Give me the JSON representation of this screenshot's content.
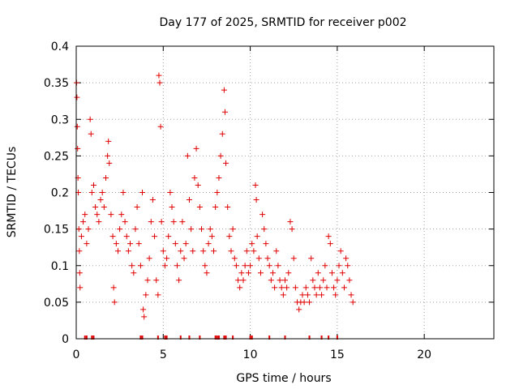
{
  "chart_data": {
    "type": "scatter",
    "title": "Day 177 of 2025, SRMTID for receiver p002",
    "xlabel": "GPS time / hours",
    "ylabel": "SRMTID / TECUs",
    "xlim": [
      0,
      24
    ],
    "ylim": [
      0,
      0.4
    ],
    "xticks": [
      0,
      5,
      10,
      15,
      20
    ],
    "xtick_labels": [
      "0",
      "5",
      "10",
      "15",
      "20"
    ],
    "yticks": [
      0,
      0.05,
      0.1,
      0.15,
      0.2,
      0.25,
      0.3,
      0.35,
      0.4
    ],
    "ytick_labels": [
      "0",
      "0.05",
      "0.1",
      "0.15",
      "0.2",
      "0.25",
      "0.3",
      "0.35",
      "0.4"
    ],
    "grid": true,
    "marker": "+",
    "color": "#e00000",
    "series": [
      {
        "name": "SRMTID",
        "points": [
          [
            0.02,
            0.35
          ],
          [
            0.04,
            0.33
          ],
          [
            0.06,
            0.29
          ],
          [
            0.08,
            0.26
          ],
          [
            0.1,
            0.22
          ],
          [
            0.12,
            0.2
          ],
          [
            0.15,
            0.15
          ],
          [
            0.18,
            0.12
          ],
          [
            0.2,
            0.09
          ],
          [
            0.22,
            0.07
          ],
          [
            0.3,
            0.14
          ],
          [
            0.4,
            0.16
          ],
          [
            0.5,
            0.17
          ],
          [
            0.6,
            0.13
          ],
          [
            0.7,
            0.15
          ],
          [
            0.8,
            0.3
          ],
          [
            0.85,
            0.28
          ],
          [
            0.9,
            0.2
          ],
          [
            1.0,
            0.21
          ],
          [
            1.1,
            0.18
          ],
          [
            1.2,
            0.17
          ],
          [
            1.3,
            0.16
          ],
          [
            1.4,
            0.19
          ],
          [
            1.5,
            0.2
          ],
          [
            1.6,
            0.18
          ],
          [
            1.7,
            0.22
          ],
          [
            1.8,
            0.25
          ],
          [
            1.85,
            0.27
          ],
          [
            1.9,
            0.24
          ],
          [
            2.0,
            0.17
          ],
          [
            2.1,
            0.14
          ],
          [
            2.15,
            0.07
          ],
          [
            2.2,
            0.05
          ],
          [
            2.3,
            0.13
          ],
          [
            2.4,
            0.12
          ],
          [
            2.5,
            0.15
          ],
          [
            2.6,
            0.17
          ],
          [
            2.7,
            0.2
          ],
          [
            2.8,
            0.16
          ],
          [
            2.9,
            0.14
          ],
          [
            3.0,
            0.12
          ],
          [
            3.1,
            0.13
          ],
          [
            3.2,
            0.1
          ],
          [
            3.3,
            0.09
          ],
          [
            3.4,
            0.15
          ],
          [
            3.5,
            0.18
          ],
          [
            3.6,
            0.13
          ],
          [
            3.7,
            0.1
          ],
          [
            3.8,
            0.2
          ],
          [
            3.85,
            0.04
          ],
          [
            3.9,
            0.03
          ],
          [
            4.0,
            0.06
          ],
          [
            4.1,
            0.08
          ],
          [
            4.2,
            0.11
          ],
          [
            4.3,
            0.16
          ],
          [
            4.4,
            0.19
          ],
          [
            4.5,
            0.14
          ],
          [
            4.6,
            0.08
          ],
          [
            4.7,
            0.06
          ],
          [
            4.75,
            0.36
          ],
          [
            4.8,
            0.35
          ],
          [
            4.85,
            0.29
          ],
          [
            4.9,
            0.16
          ],
          [
            5.0,
            0.12
          ],
          [
            5.1,
            0.1
          ],
          [
            5.2,
            0.11
          ],
          [
            5.3,
            0.14
          ],
          [
            5.4,
            0.2
          ],
          [
            5.5,
            0.18
          ],
          [
            5.6,
            0.16
          ],
          [
            5.7,
            0.13
          ],
          [
            5.8,
            0.1
          ],
          [
            5.9,
            0.08
          ],
          [
            6.0,
            0.12
          ],
          [
            6.1,
            0.16
          ],
          [
            6.2,
            0.11
          ],
          [
            6.3,
            0.13
          ],
          [
            6.4,
            0.25
          ],
          [
            6.5,
            0.19
          ],
          [
            6.6,
            0.15
          ],
          [
            6.7,
            0.12
          ],
          [
            6.8,
            0.22
          ],
          [
            6.9,
            0.26
          ],
          [
            7.0,
            0.21
          ],
          [
            7.1,
            0.18
          ],
          [
            7.2,
            0.15
          ],
          [
            7.3,
            0.12
          ],
          [
            7.4,
            0.1
          ],
          [
            7.5,
            0.09
          ],
          [
            7.6,
            0.13
          ],
          [
            7.7,
            0.15
          ],
          [
            7.8,
            0.14
          ],
          [
            7.9,
            0.12
          ],
          [
            8.0,
            0.18
          ],
          [
            8.1,
            0.2
          ],
          [
            8.2,
            0.22
          ],
          [
            8.3,
            0.25
          ],
          [
            8.4,
            0.28
          ],
          [
            8.5,
            0.34
          ],
          [
            8.55,
            0.31
          ],
          [
            8.6,
            0.24
          ],
          [
            8.7,
            0.18
          ],
          [
            8.8,
            0.14
          ],
          [
            8.9,
            0.12
          ],
          [
            9.0,
            0.15
          ],
          [
            9.1,
            0.11
          ],
          [
            9.2,
            0.1
          ],
          [
            9.3,
            0.08
          ],
          [
            9.4,
            0.07
          ],
          [
            9.5,
            0.09
          ],
          [
            9.6,
            0.08
          ],
          [
            9.7,
            0.1
          ],
          [
            9.8,
            0.12
          ],
          [
            9.9,
            0.09
          ],
          [
            10.0,
            0.1
          ],
          [
            10.1,
            0.13
          ],
          [
            10.2,
            0.12
          ],
          [
            10.3,
            0.21
          ],
          [
            10.35,
            0.19
          ],
          [
            10.4,
            0.14
          ],
          [
            10.5,
            0.11
          ],
          [
            10.6,
            0.09
          ],
          [
            10.7,
            0.17
          ],
          [
            10.8,
            0.15
          ],
          [
            10.9,
            0.13
          ],
          [
            11.0,
            0.11
          ],
          [
            11.1,
            0.1
          ],
          [
            11.2,
            0.08
          ],
          [
            11.3,
            0.09
          ],
          [
            11.4,
            0.07
          ],
          [
            11.5,
            0.12
          ],
          [
            11.6,
            0.1
          ],
          [
            11.7,
            0.08
          ],
          [
            11.8,
            0.07
          ],
          [
            11.9,
            0.06
          ],
          [
            12.0,
            0.08
          ],
          [
            12.1,
            0.07
          ],
          [
            12.2,
            0.09
          ],
          [
            12.3,
            0.16
          ],
          [
            12.4,
            0.15
          ],
          [
            12.5,
            0.11
          ],
          [
            12.6,
            0.07
          ],
          [
            12.7,
            0.05
          ],
          [
            12.8,
            0.04
          ],
          [
            12.9,
            0.05
          ],
          [
            13.0,
            0.06
          ],
          [
            13.1,
            0.05
          ],
          [
            13.2,
            0.07
          ],
          [
            13.3,
            0.06
          ],
          [
            13.4,
            0.05
          ],
          [
            13.5,
            0.11
          ],
          [
            13.6,
            0.08
          ],
          [
            13.7,
            0.07
          ],
          [
            13.8,
            0.06
          ],
          [
            13.9,
            0.09
          ],
          [
            14.0,
            0.07
          ],
          [
            14.1,
            0.06
          ],
          [
            14.2,
            0.08
          ],
          [
            14.3,
            0.1
          ],
          [
            14.4,
            0.07
          ],
          [
            14.5,
            0.14
          ],
          [
            14.6,
            0.13
          ],
          [
            14.7,
            0.09
          ],
          [
            14.8,
            0.07
          ],
          [
            14.9,
            0.06
          ],
          [
            15.0,
            0.08
          ],
          [
            15.1,
            0.1
          ],
          [
            15.2,
            0.12
          ],
          [
            15.3,
            0.09
          ],
          [
            15.4,
            0.07
          ],
          [
            15.5,
            0.11
          ],
          [
            15.6,
            0.1
          ],
          [
            15.7,
            0.08
          ],
          [
            15.8,
            0.06
          ],
          [
            15.9,
            0.05
          ]
        ]
      }
    ],
    "baseline_gap_markers_hours": [
      0.5,
      0.6,
      0.9,
      1.0,
      3.7,
      3.8,
      4.7,
      5.1,
      5.2,
      6.0,
      6.5,
      7.1,
      8.0,
      8.1,
      8.2,
      8.5,
      8.6,
      9.0,
      10.0,
      10.1,
      11.1,
      12.0,
      13.4,
      14.1,
      14.5,
      15.0
    ]
  }
}
